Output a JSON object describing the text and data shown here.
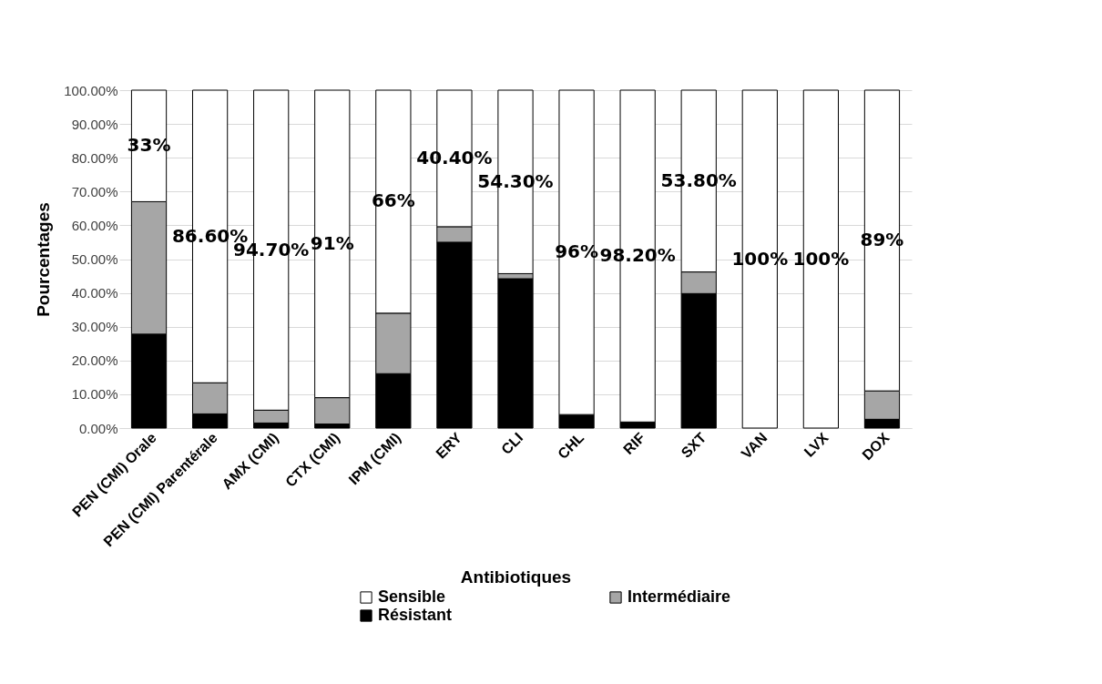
{
  "chart_data": {
    "type": "bar",
    "stacked": true,
    "xlabel": "Antibiotiques",
    "ylabel": "Pourcentages",
    "categories": [
      "PEN (CMI) Orale",
      "PEN (CMI) Parentérale",
      "AMX (CMI)",
      "CTX (CMI)",
      "IPM (CMI)",
      "ERY",
      "CLI",
      "CHL",
      "RIF",
      "SXT",
      "VAN",
      "LVX",
      "DOX"
    ],
    "series": [
      {
        "name": "Résistant",
        "color": "#000000",
        "values": [
          27.8,
          4.2,
          1.5,
          1.2,
          16.1,
          55,
          44.2,
          4,
          1.8,
          39.8,
          0,
          0,
          2.6
        ]
      },
      {
        "name": "Intermédiaire",
        "color": "#a6a6a6",
        "values": [
          39.2,
          9.2,
          3.8,
          7.8,
          17.9,
          4.6,
          1.5,
          0,
          0,
          6.4,
          0,
          0,
          8.4
        ]
      },
      {
        "name": "Sensible",
        "color": "#ffffff",
        "values": [
          33,
          86.6,
          94.7,
          91,
          66,
          40.4,
          54.3,
          96,
          98.2,
          53.8,
          100,
          100,
          89
        ],
        "value_labels": [
          "33%",
          "86.60%",
          "94.70%",
          "91%",
          "66%",
          "40.40%",
          "54.30%",
          "96%",
          "98.20%",
          "53.80%",
          "100%",
          "100%",
          "89%"
        ]
      }
    ],
    "ylim": [
      0,
      100
    ],
    "yticks": [
      {
        "value": 0,
        "label": "0.00%"
      },
      {
        "value": 10,
        "label": "10.00%"
      },
      {
        "value": 20,
        "label": "20.00%"
      },
      {
        "value": 30,
        "label": "30.00%"
      },
      {
        "value": 40,
        "label": "40.00%"
      },
      {
        "value": 50,
        "label": "50.00%"
      },
      {
        "value": 60,
        "label": "60.00%"
      },
      {
        "value": 70,
        "label": "70.00%"
      },
      {
        "value": 80,
        "label": "80.00%"
      },
      {
        "value": 90,
        "label": "90.00%"
      },
      {
        "value": 100,
        "label": "100.00%"
      }
    ],
    "grid": "y",
    "legend": "bottom"
  }
}
